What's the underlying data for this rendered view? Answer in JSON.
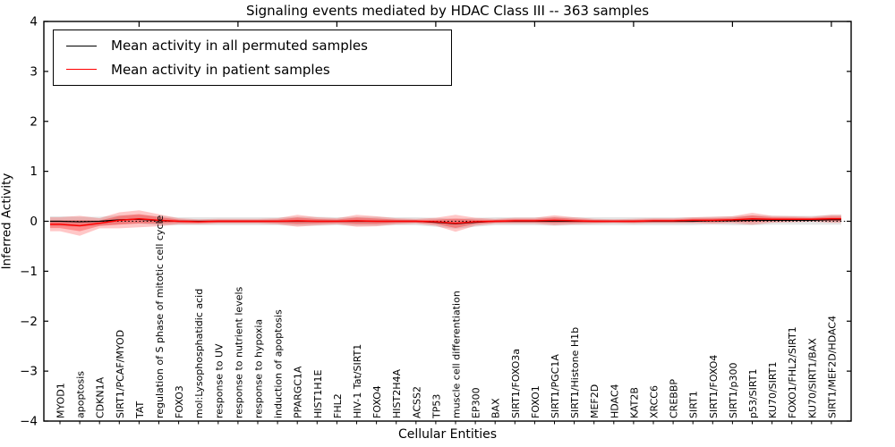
{
  "title": "Signaling events mediated by HDAC Class III -- 363 samples",
  "axes": {
    "xlabel": "Cellular Entities",
    "ylabel": "Inferred Activity",
    "ytick_labels": [
      "4",
      "3",
      "2",
      "1",
      "0",
      "−1",
      "−2",
      "−3",
      "−4"
    ]
  },
  "legend": {
    "entries": [
      {
        "label": "Mean activity in all permuted samples",
        "color": "#000000"
      },
      {
        "label": "Mean activity in patient samples",
        "color": "#ff0000"
      }
    ]
  },
  "chart_data": {
    "type": "line",
    "title": "Signaling events mediated by HDAC Class III -- 363 samples",
    "xlabel": "Cellular Entities",
    "ylabel": "Inferred Activity",
    "ylim": [
      -4,
      4
    ],
    "yticks": [
      4,
      3,
      2,
      1,
      0,
      -1,
      -2,
      -3,
      -4
    ],
    "grid": false,
    "legend_position": "upper-left",
    "zero_line": {
      "style": "dotted",
      "color": "#000000",
      "y": 0
    },
    "categories": [
      "MYOD1",
      "apoptosis",
      "CDKN1A",
      "SIRT1/PCAF/MYOD",
      "TAT",
      "regulation of S phase of mitotic cell cycle",
      "FOXO3",
      "mol:Lysophosphatidic acid",
      "response to UV",
      "response to nutrient levels",
      "response to hypoxia",
      "induction of apoptosis",
      "PPARGC1A",
      "HIST1H1E",
      "FHL2",
      "HIV-1 Tat/SIRT1",
      "FOXO4",
      "HIST2H4A",
      "ACSS2",
      "TP53",
      "muscle cell differentiation",
      "EP300",
      "BAX",
      "SIRT1/FOXO3a",
      "FOXO1",
      "SIRT1/PGC1A",
      "SIRT1/Histone H1b",
      "MEF2D",
      "HDAC4",
      "KAT2B",
      "XRCC6",
      "CREBBP",
      "SIRT1",
      "SIRT1/FOXO4",
      "SIRT1/p300",
      "p53/SIRT1",
      "KU70/SIRT1",
      "FOXO1/FHL2/SIRT1",
      "KU70/SIRT1/BAX",
      "SIRT1/MEF2D/HDAC4"
    ],
    "series": [
      {
        "name": "Mean activity in all permuted samples",
        "color": "#000000",
        "band_color": "rgba(0,0,0,0.10)",
        "values": [
          0.0,
          -0.01,
          0.0,
          0.03,
          0.04,
          0.01,
          0.0,
          0.0,
          0.0,
          0.0,
          0.0,
          0.0,
          0.0,
          0.0,
          0.0,
          0.0,
          0.0,
          0.0,
          0.0,
          -0.02,
          -0.05,
          -0.02,
          0.0,
          0.0,
          0.0,
          0.0,
          0.0,
          0.0,
          0.0,
          0.0,
          0.0,
          0.0,
          0.0,
          0.01,
          0.01,
          0.02,
          0.02,
          0.02,
          0.02,
          0.03
        ],
        "band_halfwidth": [
          0.1,
          0.1,
          0.09,
          0.09,
          0.09,
          0.09,
          0.08,
          0.08,
          0.08,
          0.08,
          0.08,
          0.08,
          0.09,
          0.09,
          0.08,
          0.09,
          0.09,
          0.08,
          0.08,
          0.09,
          0.1,
          0.09,
          0.08,
          0.08,
          0.08,
          0.09,
          0.08,
          0.08,
          0.08,
          0.08,
          0.08,
          0.08,
          0.08,
          0.08,
          0.09,
          0.1,
          0.09,
          0.09,
          0.09,
          0.1
        ]
      },
      {
        "name": "Mean activity in patient samples",
        "color": "#ff0000",
        "band_color": "rgba(255,0,0,0.22)",
        "values": [
          -0.06,
          -0.09,
          -0.04,
          0.02,
          0.05,
          0.02,
          0.0,
          -0.01,
          0.0,
          0.0,
          0.0,
          0.0,
          0.01,
          0.0,
          0.0,
          0.01,
          0.0,
          0.0,
          0.0,
          -0.01,
          -0.04,
          -0.01,
          0.0,
          0.01,
          0.01,
          0.02,
          0.01,
          0.0,
          0.0,
          0.0,
          0.01,
          0.01,
          0.02,
          0.02,
          0.03,
          0.05,
          0.04,
          0.04,
          0.04,
          0.05
        ],
        "band_halfwidth": [
          0.14,
          0.2,
          0.1,
          0.16,
          0.17,
          0.12,
          0.06,
          0.05,
          0.05,
          0.05,
          0.05,
          0.06,
          0.12,
          0.08,
          0.06,
          0.12,
          0.1,
          0.06,
          0.05,
          0.08,
          0.17,
          0.08,
          0.05,
          0.06,
          0.06,
          0.1,
          0.07,
          0.05,
          0.04,
          0.05,
          0.05,
          0.05,
          0.06,
          0.07,
          0.07,
          0.12,
          0.07,
          0.06,
          0.05,
          0.08
        ]
      }
    ]
  }
}
